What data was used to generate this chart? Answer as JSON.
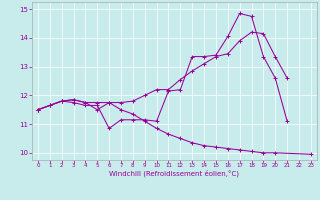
{
  "xlabel": "Windchill (Refroidissement éolien,°C)",
  "bg_color": "#c8ecec",
  "line_color": "#990099",
  "grid_color": "#ffffff",
  "spine_color": "#aaaaaa",
  "xlim": [
    -0.5,
    23.5
  ],
  "ylim": [
    9.75,
    15.25
  ],
  "xticks": [
    0,
    1,
    2,
    3,
    4,
    5,
    6,
    7,
    8,
    9,
    10,
    11,
    12,
    13,
    14,
    15,
    16,
    17,
    18,
    19,
    20,
    21,
    22,
    23
  ],
  "yticks": [
    10,
    11,
    12,
    13,
    14,
    15
  ],
  "line1_x": [
    0,
    1,
    2,
    3,
    4,
    5,
    6,
    7,
    8,
    9,
    10,
    11,
    12,
    13,
    14,
    15,
    16,
    17,
    18,
    19,
    20,
    21
  ],
  "line1_y": [
    11.5,
    11.65,
    11.8,
    11.75,
    11.65,
    11.65,
    10.85,
    11.15,
    11.15,
    11.15,
    11.1,
    12.15,
    12.2,
    13.35,
    13.35,
    13.4,
    14.05,
    14.85,
    14.75,
    13.35,
    12.6,
    11.1
  ],
  "line2_x": [
    0,
    1,
    2,
    3,
    4,
    5,
    6,
    7,
    8,
    9,
    10,
    11,
    12,
    13,
    14,
    15,
    16,
    17,
    18,
    19,
    20,
    21,
    22,
    23
  ],
  "line2_y": [
    11.5,
    11.65,
    11.8,
    11.85,
    11.75,
    11.75,
    11.75,
    11.75,
    11.8,
    12.0,
    12.2,
    12.2,
    12.55,
    12.85,
    13.1,
    13.35,
    13.45,
    13.9,
    14.2,
    14.15,
    13.35,
    12.6,
    null,
    null
  ],
  "line3_x": [
    0,
    1,
    2,
    3,
    4,
    5,
    6,
    7,
    8,
    9,
    10,
    11,
    12,
    13,
    14,
    15,
    16,
    17,
    18,
    19,
    20,
    21,
    22,
    23
  ],
  "line3_y": [
    11.5,
    11.65,
    11.8,
    11.85,
    11.75,
    11.5,
    11.75,
    11.5,
    11.35,
    11.1,
    10.85,
    10.65,
    10.5,
    10.35,
    10.25,
    10.2,
    10.15,
    10.1,
    10.05,
    10.0,
    10.0,
    null,
    null,
    9.95
  ]
}
